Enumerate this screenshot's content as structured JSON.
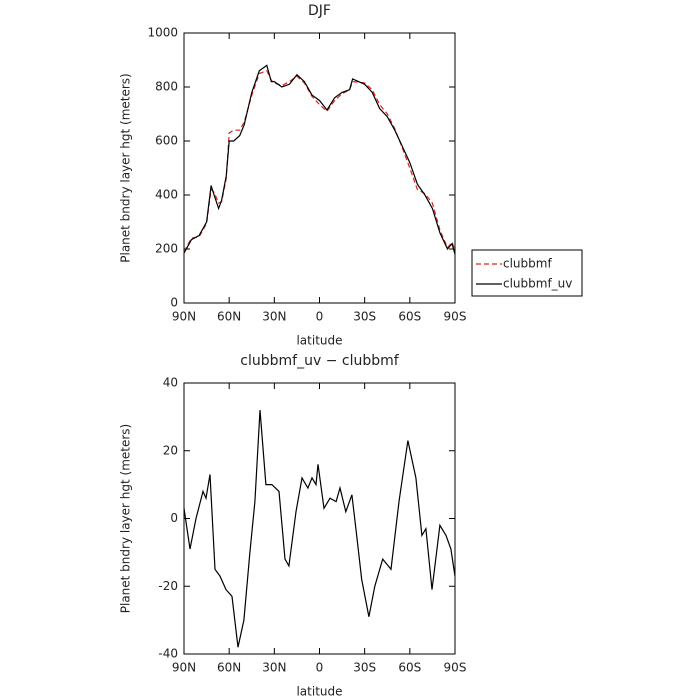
{
  "chart_data": [
    {
      "type": "line",
      "title": "DJF",
      "x_label": "latitude",
      "y_label": "Planet bndry layer hgt (meters)",
      "x": [
        90,
        85,
        80,
        75,
        72,
        70,
        67,
        65,
        62,
        60,
        57,
        53,
        50,
        45,
        40,
        35,
        32,
        30,
        25,
        20,
        15,
        10,
        5,
        0,
        -5,
        -10,
        -15,
        -20,
        -22,
        -30,
        -35,
        -40,
        -45,
        -50,
        -55,
        -60,
        -65,
        -70,
        -75,
        -80,
        -85,
        -88,
        -90
      ],
      "series": [
        {
          "name": "clubbmf",
          "color": "#e02020",
          "line_style": "dashed",
          "values": [
            190,
            240,
            245,
            295,
            420,
            410,
            370,
            375,
            460,
            630,
            640,
            640,
            670,
            770,
            850,
            860,
            825,
            815,
            805,
            820,
            840,
            815,
            765,
            735,
            710,
            750,
            775,
            790,
            820,
            815,
            790,
            735,
            700,
            645,
            575,
            500,
            420,
            405,
            370,
            270,
            205,
            225,
            195
          ]
        },
        {
          "name": "clubbmf_uv",
          "color": "#000000",
          "line_style": "solid",
          "values": [
            185,
            235,
            250,
            300,
            435,
            400,
            350,
            380,
            470,
            600,
            600,
            620,
            660,
            780,
            860,
            880,
            820,
            820,
            800,
            810,
            845,
            820,
            770,
            750,
            715,
            760,
            780,
            790,
            830,
            810,
            780,
            720,
            690,
            640,
            580,
            520,
            440,
            400,
            350,
            260,
            200,
            220,
            180
          ]
        }
      ],
      "xlim": [
        90,
        -90
      ],
      "xticks": [
        {
          "value": 90,
          "label": "90N"
        },
        {
          "value": 60,
          "label": "60N"
        },
        {
          "value": 30,
          "label": "30N"
        },
        0,
        {
          "value": -30,
          "label": "30S"
        },
        {
          "value": -60,
          "label": "60S"
        },
        {
          "value": -90,
          "label": "90S"
        }
      ],
      "ylim": [
        0,
        1000
      ],
      "yticks": [
        0,
        200,
        400,
        600,
        800,
        1000
      ],
      "legend": "right"
    },
    {
      "type": "line",
      "title": "clubbmf_uv − clubbmf",
      "x_label": "latitude",
      "y_label": "Planet bndry layer hgt (meters)",
      "x": [
        90,
        86,
        82,
        77.4,
        75.4,
        72.7,
        69.4,
        66.1,
        62.1,
        58.1,
        54.1,
        50.2,
        46.2,
        42.9,
        39.5,
        35.6,
        31.6,
        26.9,
        22.9,
        20.3,
        15.6,
        11.6,
        7.7,
        5,
        2.3,
        1,
        -3,
        -7,
        -11,
        -13.6,
        -17.5,
        -21.5,
        -24.2,
        -28,
        -32.8,
        -36.7,
        -42,
        -47.5,
        -52.8,
        -58.7,
        -64,
        -68,
        -70.7,
        -74.7,
        -80,
        -84,
        -87.3,
        -90
      ],
      "color": "#000000",
      "values": [
        3,
        -9,
        0,
        8,
        6,
        13,
        -15,
        -17,
        -21,
        -23,
        -38,
        -30,
        -10,
        5,
        32,
        10,
        10,
        8,
        -12,
        -14,
        2,
        12,
        9,
        12,
        10,
        16,
        3,
        6,
        5,
        9,
        2,
        7,
        -3,
        -18,
        -29,
        -20,
        -12,
        -15,
        5,
        23,
        12,
        -5,
        -3,
        -21,
        -2,
        -5,
        -9,
        -17
      ],
      "xlim": [
        90,
        -90
      ],
      "xticks": [
        {
          "value": 90,
          "label": "90N"
        },
        {
          "value": 60,
          "label": "60N"
        },
        {
          "value": 30,
          "label": "30N"
        },
        0,
        {
          "value": -30,
          "label": "30S"
        },
        {
          "value": -60,
          "label": "60S"
        },
        {
          "value": -90,
          "label": "90S"
        }
      ],
      "ylim": [
        -40,
        40
      ],
      "yticks": [
        -40,
        -20,
        0,
        20,
        40
      ]
    }
  ]
}
